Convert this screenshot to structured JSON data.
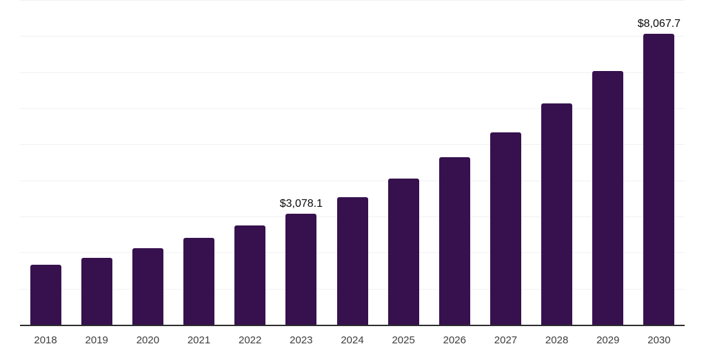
{
  "chart_data": {
    "type": "bar",
    "title": "",
    "xlabel": "",
    "ylabel": "",
    "categories": [
      "2018",
      "2019",
      "2020",
      "2021",
      "2022",
      "2023",
      "2024",
      "2025",
      "2026",
      "2027",
      "2028",
      "2029",
      "2030"
    ],
    "values": [
      1670,
      1863,
      2115,
      2402,
      2750,
      3078.1,
      3532.3,
      4053.5,
      4651.6,
      5337.9,
      6125.6,
      7029.5,
      8067.7
    ],
    "value_labels": {
      "2023": "$3,078.1",
      "2030": "$8,067.7"
    },
    "ylim": [
      0,
      9000
    ],
    "gridline_interval": 1000,
    "grid": true,
    "legend": false,
    "colors": {
      "bar": "#36114E",
      "axis_line": "#2d2d2d",
      "gridline": "#f1f1f1",
      "tick_label": "#3d3d3d",
      "value_label": "#0a0a0a",
      "background": "#ffffff"
    }
  }
}
